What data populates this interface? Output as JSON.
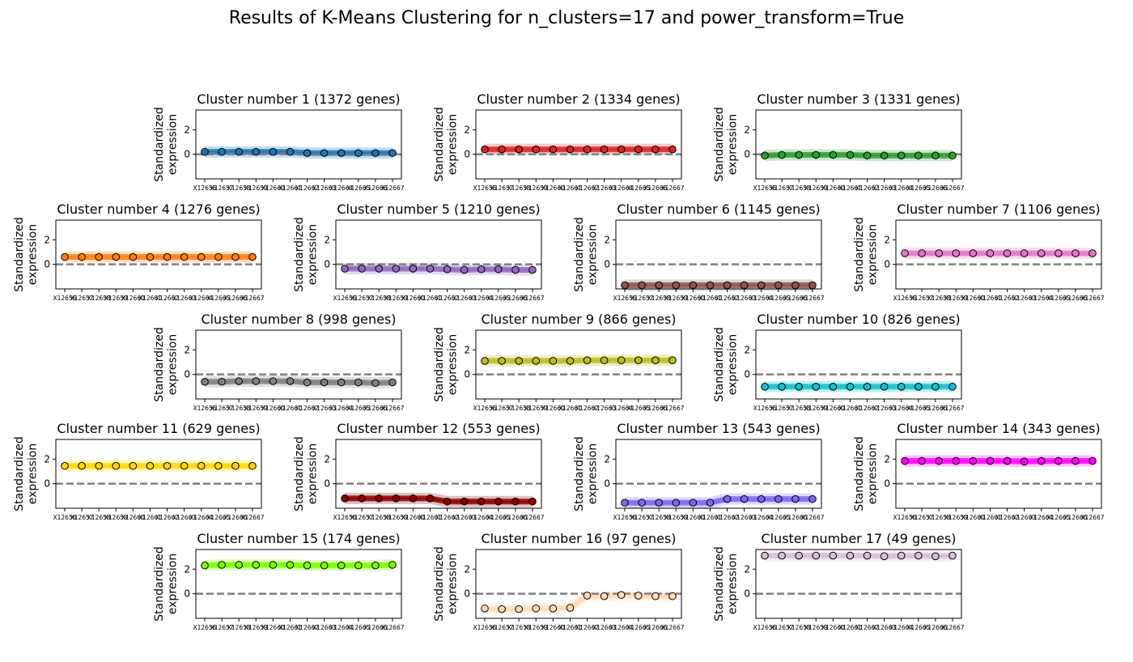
{
  "suptitle": "Results of K-Means Clustering for n_clusters=17 and power_transform=True",
  "ylabel_line1": "Standardized",
  "ylabel_line2": "expression",
  "chart_data": {
    "type": "line",
    "ylim": [
      -2,
      3.6
    ],
    "yticks": [
      0,
      2
    ],
    "reference_line": 0,
    "xtick_labels": [
      "X12656",
      "X12657",
      "X12658",
      "X12659",
      "X12660",
      "X12661",
      "X12662",
      "X12663",
      "X12664",
      "X12665",
      "X12666",
      "X12667"
    ],
    "x_tick_display": [
      "X12656",
      "X12657",
      "X12658",
      "X12659",
      "X12660",
      "X12661",
      "X12662",
      "X12663",
      "X12664",
      "X12665",
      "X12666",
      "X12667"
    ],
    "panels": [
      {
        "title": "Cluster number 1 (1372 genes)",
        "color": "#1f77b4",
        "values": [
          0.2,
          0.2,
          0.2,
          0.2,
          0.2,
          0.2,
          0.1,
          0.1,
          0.1,
          0.1,
          0.1,
          0.1
        ]
      },
      {
        "title": "Cluster number 2 (1334 genes)",
        "color": "#d62728",
        "values": [
          0.4,
          0.4,
          0.4,
          0.4,
          0.4,
          0.4,
          0.4,
          0.4,
          0.4,
          0.4,
          0.4,
          0.4
        ]
      },
      {
        "title": "Cluster number 3 (1331 genes)",
        "color": "#2ca02c",
        "values": [
          -0.1,
          -0.05,
          -0.05,
          -0.05,
          -0.05,
          -0.05,
          -0.1,
          -0.1,
          -0.1,
          -0.1,
          -0.1,
          -0.1
        ]
      },
      {
        "title": "Cluster number 4 (1276 genes)",
        "color": "#ff7f0e",
        "values": [
          0.6,
          0.6,
          0.6,
          0.6,
          0.6,
          0.6,
          0.6,
          0.6,
          0.6,
          0.6,
          0.6,
          0.6
        ]
      },
      {
        "title": "Cluster number 5 (1210 genes)",
        "color": "#9467bd",
        "values": [
          -0.35,
          -0.35,
          -0.35,
          -0.35,
          -0.35,
          -0.35,
          -0.4,
          -0.45,
          -0.4,
          -0.4,
          -0.45,
          -0.45
        ]
      },
      {
        "title": "Cluster number 6 (1145 genes)",
        "color": "#8c564b",
        "values": [
          -1.7,
          -1.7,
          -1.7,
          -1.7,
          -1.7,
          -1.7,
          -1.7,
          -1.7,
          -1.7,
          -1.7,
          -1.7,
          -1.7
        ]
      },
      {
        "title": "Cluster number 7 (1106 genes)",
        "color": "#e377c2",
        "values": [
          0.9,
          0.9,
          0.9,
          0.9,
          0.9,
          0.9,
          0.9,
          0.9,
          0.9,
          0.9,
          0.9,
          0.9
        ]
      },
      {
        "title": "Cluster number 8 (998 genes)",
        "color": "#7f7f7f",
        "values": [
          -0.6,
          -0.6,
          -0.55,
          -0.55,
          -0.55,
          -0.55,
          -0.65,
          -0.65,
          -0.65,
          -0.65,
          -0.7,
          -0.65
        ]
      },
      {
        "title": "Cluster number 9 (866 genes)",
        "color": "#bcbd22",
        "values": [
          1.1,
          1.1,
          1.1,
          1.1,
          1.1,
          1.1,
          1.15,
          1.15,
          1.15,
          1.15,
          1.15,
          1.15
        ]
      },
      {
        "title": "Cluster number 10 (826 genes)",
        "color": "#17becf",
        "values": [
          -1.0,
          -1.0,
          -1.0,
          -1.0,
          -1.0,
          -1.0,
          -1.0,
          -1.0,
          -1.0,
          -1.0,
          -1.0,
          -1.0
        ]
      },
      {
        "title": "Cluster number 11 (629 genes)",
        "color": "#ffd700",
        "values": [
          1.45,
          1.45,
          1.45,
          1.45,
          1.45,
          1.45,
          1.45,
          1.45,
          1.45,
          1.45,
          1.45,
          1.45
        ]
      },
      {
        "title": "Cluster number 12 (553 genes)",
        "color": "#8b0000",
        "values": [
          -1.2,
          -1.2,
          -1.2,
          -1.2,
          -1.2,
          -1.2,
          -1.45,
          -1.45,
          -1.45,
          -1.45,
          -1.45,
          -1.45
        ]
      },
      {
        "title": "Cluster number 13 (543 genes)",
        "color": "#7b68ee",
        "values": [
          -1.55,
          -1.55,
          -1.55,
          -1.55,
          -1.55,
          -1.55,
          -1.25,
          -1.25,
          -1.25,
          -1.25,
          -1.25,
          -1.25
        ]
      },
      {
        "title": "Cluster number 14 (343 genes)",
        "color": "#ff00ff",
        "values": [
          1.85,
          1.85,
          1.85,
          1.85,
          1.85,
          1.85,
          1.85,
          1.8,
          1.85,
          1.85,
          1.85,
          1.85
        ]
      },
      {
        "title": "Cluster number 15 (174 genes)",
        "color": "#7cfc00",
        "values": [
          2.3,
          2.35,
          2.35,
          2.35,
          2.35,
          2.35,
          2.3,
          2.3,
          2.3,
          2.3,
          2.3,
          2.35
        ]
      },
      {
        "title": "Cluster number 16 (97 genes)",
        "color": "#ffdab9",
        "values": [
          -1.2,
          -1.25,
          -1.25,
          -1.2,
          -1.2,
          -1.15,
          -0.15,
          -0.2,
          -0.1,
          -0.15,
          -0.2,
          -0.2
        ]
      },
      {
        "title": "Cluster number 17 (49 genes)",
        "color": "#d8bfd8",
        "values": [
          3.1,
          3.1,
          3.1,
          3.1,
          3.1,
          3.1,
          3.1,
          3.05,
          3.1,
          3.1,
          3.05,
          3.1
        ]
      }
    ]
  }
}
